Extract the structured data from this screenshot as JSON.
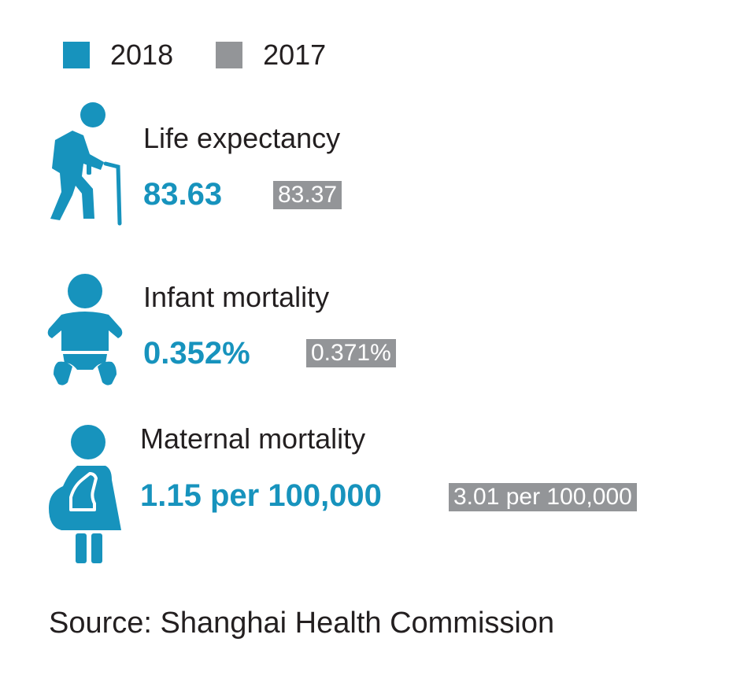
{
  "chart_data": {
    "type": "table",
    "title": "",
    "legend": {
      "placement": "top-left",
      "entries": [
        {
          "name": "2018",
          "color": "#1793bd"
        },
        {
          "name": "2017",
          "color": "#939598"
        }
      ]
    },
    "columns": [
      "2018",
      "2017"
    ],
    "rows": [
      {
        "label": "Life expectancy",
        "icon": "elderly-person-with-cane-icon",
        "value_2018": "83.63",
        "value_2017": "83.37"
      },
      {
        "label": "Infant mortality",
        "icon": "baby-icon",
        "value_2018": "0.352%",
        "value_2017": "0.371%"
      },
      {
        "label": "Maternal mortality",
        "icon": "pregnant-woman-icon",
        "value_2018": "1.15 per 100,000",
        "value_2017": "3.01 per 100,000"
      }
    ]
  },
  "source": "Source: Shanghai Health Commission",
  "colors": {
    "accent_2018": "#1793bd",
    "accent_2017": "#939598",
    "text": "#231f20"
  }
}
